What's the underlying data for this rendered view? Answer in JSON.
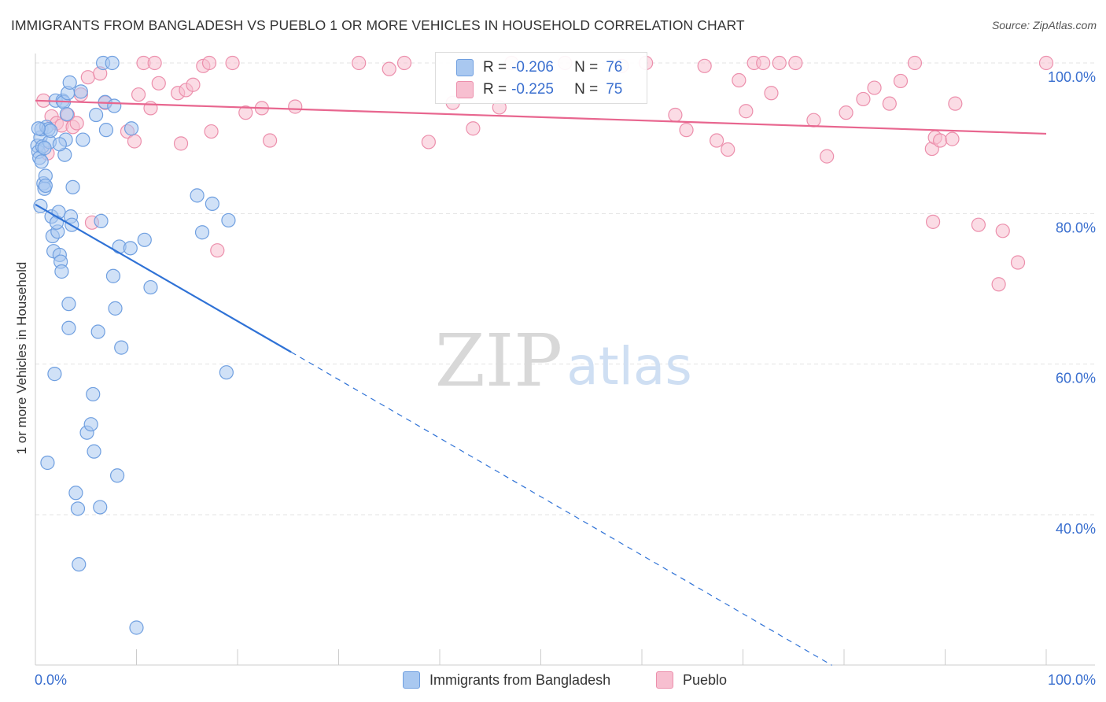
{
  "title": "IMMIGRANTS FROM BANGLADESH VS PUEBLO 1 OR MORE VEHICLES IN HOUSEHOLD CORRELATION CHART",
  "source": "Source: ZipAtlas.com",
  "watermark": {
    "zip": "ZIP",
    "atlas": "atlas"
  },
  "legend": {
    "rows": [
      {
        "r_label": "R =",
        "r_value": "-0.206",
        "n_label": "N =",
        "n_value": "76"
      },
      {
        "r_label": "R =",
        "r_value": "-0.225",
        "n_label": "N =",
        "n_value": "75"
      }
    ]
  },
  "colors": {
    "blue_fill": "#a9c8f0",
    "blue_stroke": "#6f9fe0",
    "blue_line": "#2f72d6",
    "pink_fill": "#f7bfd0",
    "pink_stroke": "#ec8fac",
    "pink_line": "#e8668f",
    "tick_label": "#3a6fcf",
    "grid": "#e3e3e3"
  },
  "chart_data": {
    "type": "scatter",
    "title": "IMMIGRANTS FROM BANGLADESH VS PUEBLO 1 OR MORE VEHICLES IN HOUSEHOLD CORRELATION CHART",
    "xlabel": "",
    "ylabel": "1 or more Vehicles in Household",
    "xlim": [
      0,
      100
    ],
    "ylim": [
      20,
      102
    ],
    "x_tick_labels": [
      "0.0%",
      "100.0%"
    ],
    "y_ticks": [
      40,
      60,
      80,
      100
    ],
    "y_tick_labels": [
      "40.0%",
      "60.0%",
      "80.0%",
      "100.0%"
    ],
    "grid": true,
    "legend_position": "bottom-center",
    "series": [
      {
        "name": "Immigrants from Bangladesh",
        "points": [
          [
            0.2,
            89.0
          ],
          [
            0.3,
            88.2
          ],
          [
            0.4,
            87.4
          ],
          [
            0.5,
            90.1
          ],
          [
            0.6,
            91.2
          ],
          [
            0.7,
            88.9
          ],
          [
            0.8,
            84.0
          ],
          [
            0.9,
            83.3
          ],
          [
            1.0,
            85.0
          ],
          [
            1.1,
            91.5
          ],
          [
            1.3,
            91.2
          ],
          [
            1.4,
            89.5
          ],
          [
            1.5,
            91.0
          ],
          [
            1.6,
            79.6
          ],
          [
            1.7,
            77.0
          ],
          [
            1.8,
            75.0
          ],
          [
            1.9,
            58.7
          ],
          [
            2.0,
            95.0
          ],
          [
            2.2,
            77.6
          ],
          [
            2.3,
            80.2
          ],
          [
            2.4,
            74.5
          ],
          [
            2.5,
            73.6
          ],
          [
            2.6,
            72.3
          ],
          [
            2.7,
            95.0
          ],
          [
            2.8,
            94.8
          ],
          [
            2.9,
            87.8
          ],
          [
            3.0,
            89.8
          ],
          [
            3.1,
            93.2
          ],
          [
            3.2,
            96.0
          ],
          [
            3.3,
            68.0
          ],
          [
            3.3,
            64.8
          ],
          [
            3.4,
            97.4
          ],
          [
            3.5,
            79.6
          ],
          [
            3.7,
            83.5
          ],
          [
            4.0,
            42.9
          ],
          [
            4.2,
            40.8
          ],
          [
            4.3,
            33.4
          ],
          [
            4.5,
            96.2
          ],
          [
            4.7,
            89.8
          ],
          [
            5.1,
            50.9
          ],
          [
            5.5,
            52.0
          ],
          [
            5.7,
            56.0
          ],
          [
            5.8,
            48.4
          ],
          [
            6.0,
            93.1
          ],
          [
            6.2,
            64.3
          ],
          [
            6.4,
            41.0
          ],
          [
            6.5,
            79.0
          ],
          [
            6.7,
            100.0
          ],
          [
            6.9,
            94.8
          ],
          [
            7.0,
            91.1
          ],
          [
            7.6,
            100.0
          ],
          [
            7.7,
            71.7
          ],
          [
            7.8,
            94.3
          ],
          [
            7.9,
            67.4
          ],
          [
            8.1,
            45.2
          ],
          [
            8.3,
            75.6
          ],
          [
            8.5,
            62.2
          ],
          [
            9.5,
            91.3
          ],
          [
            9.4,
            75.4
          ],
          [
            10.0,
            25.0
          ],
          [
            10.8,
            76.5
          ],
          [
            11.4,
            70.2
          ],
          [
            1.2,
            46.9
          ],
          [
            16.0,
            82.4
          ],
          [
            16.5,
            77.5
          ],
          [
            17.5,
            81.3
          ],
          [
            18.9,
            58.9
          ],
          [
            19.1,
            79.1
          ],
          [
            0.5,
            81.0
          ],
          [
            0.3,
            91.3
          ],
          [
            0.9,
            88.7
          ],
          [
            2.1,
            78.8
          ],
          [
            3.6,
            78.5
          ],
          [
            2.4,
            89.2
          ],
          [
            1.0,
            83.7
          ],
          [
            0.6,
            86.9
          ]
        ],
        "trend": {
          "x0": 0,
          "y0": 81.2,
          "x1": 25.3,
          "y1": 61.6,
          "dash_to_x": 78.8,
          "dash_to_y": 20
        }
      },
      {
        "name": "Pueblo",
        "points": [
          [
            0.8,
            95.0
          ],
          [
            1.2,
            88.0
          ],
          [
            1.6,
            92.9
          ],
          [
            2.1,
            92.0
          ],
          [
            2.6,
            91.7
          ],
          [
            3.2,
            93.1
          ],
          [
            3.7,
            91.5
          ],
          [
            4.1,
            92.0
          ],
          [
            4.5,
            95.8
          ],
          [
            5.2,
            98.1
          ],
          [
            5.6,
            78.8
          ],
          [
            6.4,
            98.6
          ],
          [
            6.9,
            94.7
          ],
          [
            9.1,
            90.9
          ],
          [
            9.8,
            89.6
          ],
          [
            10.2,
            95.8
          ],
          [
            10.7,
            100.0
          ],
          [
            11.4,
            94.0
          ],
          [
            11.8,
            100.0
          ],
          [
            12.2,
            97.3
          ],
          [
            14.1,
            96.0
          ],
          [
            14.4,
            89.3
          ],
          [
            14.9,
            96.4
          ],
          [
            15.6,
            97.1
          ],
          [
            16.6,
            99.6
          ],
          [
            17.2,
            100.0
          ],
          [
            17.4,
            90.9
          ],
          [
            18.0,
            75.1
          ],
          [
            19.5,
            100.0
          ],
          [
            20.8,
            93.4
          ],
          [
            22.4,
            94.0
          ],
          [
            23.2,
            89.7
          ],
          [
            25.7,
            94.2
          ],
          [
            32.0,
            100.0
          ],
          [
            35.0,
            99.2
          ],
          [
            36.5,
            100.0
          ],
          [
            38.9,
            89.5
          ],
          [
            41.3,
            94.7
          ],
          [
            43.3,
            91.3
          ],
          [
            45.9,
            94.1
          ],
          [
            47.1,
            100.0
          ],
          [
            52.4,
            100.0
          ],
          [
            58.0,
            99.6
          ],
          [
            60.4,
            100.0
          ],
          [
            63.3,
            93.1
          ],
          [
            64.4,
            91.1
          ],
          [
            66.2,
            99.6
          ],
          [
            67.4,
            89.7
          ],
          [
            68.5,
            88.5
          ],
          [
            69.6,
            97.7
          ],
          [
            70.3,
            93.6
          ],
          [
            71.1,
            100.0
          ],
          [
            72.0,
            100.0
          ],
          [
            72.8,
            96.0
          ],
          [
            73.6,
            100.0
          ],
          [
            75.2,
            100.0
          ],
          [
            77.0,
            92.4
          ],
          [
            78.3,
            87.6
          ],
          [
            80.2,
            93.4
          ],
          [
            81.9,
            95.2
          ],
          [
            83.0,
            96.7
          ],
          [
            84.5,
            94.6
          ],
          [
            85.6,
            97.6
          ],
          [
            87.0,
            100.0
          ],
          [
            88.7,
            88.6
          ],
          [
            89.0,
            90.1
          ],
          [
            89.5,
            89.7
          ],
          [
            90.7,
            89.9
          ],
          [
            91.0,
            94.6
          ],
          [
            88.8,
            78.9
          ],
          [
            93.3,
            78.5
          ],
          [
            95.3,
            70.6
          ],
          [
            95.7,
            77.7
          ],
          [
            97.2,
            73.5
          ],
          [
            100.0,
            100.0
          ]
        ],
        "trend": {
          "x0": 0,
          "y0": 95.0,
          "x1": 100,
          "y1": 90.6
        }
      }
    ]
  }
}
